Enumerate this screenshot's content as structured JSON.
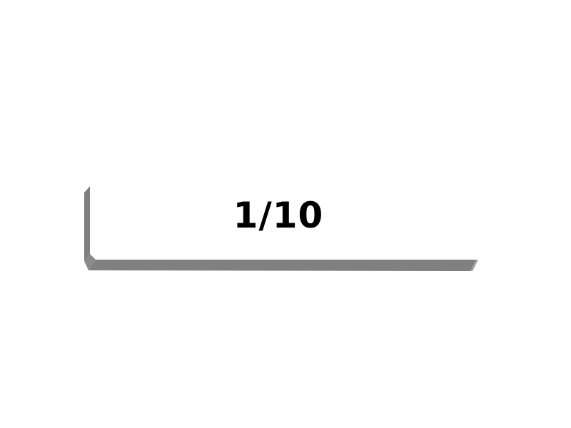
{
  "counter": {
    "current": 1,
    "total": 10,
    "label": "1/10"
  },
  "colors": {
    "background": "#ffffff",
    "text": "#000000",
    "frame": "#808080",
    "frame_highlight": "#a6a6a6"
  }
}
